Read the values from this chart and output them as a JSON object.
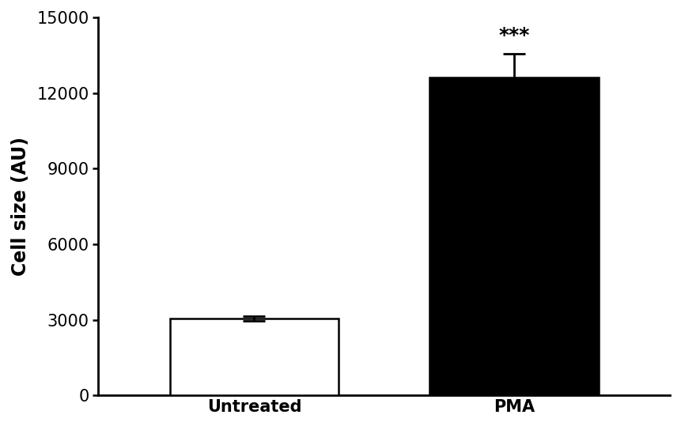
{
  "categories": [
    "Untreated",
    "PMA"
  ],
  "values": [
    3050,
    12600
  ],
  "errors": [
    100,
    950
  ],
  "bar_colors": [
    "#ffffff",
    "#000000"
  ],
  "bar_edgecolors": [
    "#000000",
    "#000000"
  ],
  "bar_linewidth": 1.8,
  "ylabel": "Cell size (AU)",
  "ylim": [
    0,
    15000
  ],
  "yticks": [
    0,
    3000,
    6000,
    9000,
    12000,
    15000
  ],
  "significance_label": "***",
  "significance_bar_index": 1,
  "background_color": "#ffffff",
  "error_capsize": 10,
  "error_linewidth": 2.0,
  "error_color": "#000000",
  "ylabel_fontsize": 17,
  "tick_fontsize": 15,
  "sig_fontsize": 18,
  "bar_width": 0.65,
  "xlim": [
    -0.6,
    1.6
  ],
  "x_positions": [
    0,
    1
  ]
}
